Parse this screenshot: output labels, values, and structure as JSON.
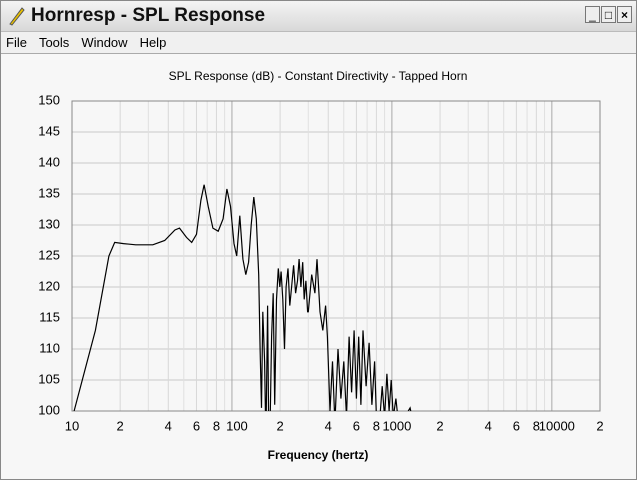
{
  "window": {
    "title": "Hornresp - SPL Response",
    "menu": [
      "File",
      "Tools",
      "Window",
      "Help"
    ]
  },
  "chart_data": {
    "type": "line",
    "title": "SPL Response (dB) - Constant Directivity - Tapped Horn",
    "x_label": "Frequency (hertz)",
    "log_x": true,
    "grid": true,
    "xlim": [
      10,
      20000
    ],
    "ylim": [
      100,
      150
    ],
    "xticks": [
      10,
      {
        "value": 20,
        "label": "2"
      },
      {
        "value": 40,
        "label": "4"
      },
      {
        "value": 60,
        "label": "6"
      },
      {
        "value": 80,
        "label": "8"
      },
      100,
      {
        "value": 200,
        "label": "2"
      },
      {
        "value": 400,
        "label": "4"
      },
      {
        "value": 600,
        "label": "6"
      },
      {
        "value": 800,
        "label": "8"
      },
      1000,
      {
        "value": 2000,
        "label": "2"
      },
      {
        "value": 4000,
        "label": "4"
      },
      {
        "value": 6000,
        "label": "6"
      },
      {
        "value": 8000,
        "label": "8"
      },
      10000,
      {
        "value": 20000,
        "label": "2"
      }
    ],
    "xminor_ticks": [
      30,
      50,
      70,
      90,
      300,
      500,
      700,
      900,
      3000,
      5000,
      7000,
      9000
    ],
    "yticks": [
      100,
      105,
      110,
      115,
      120,
      125,
      130,
      135,
      140,
      145,
      150
    ],
    "series": [
      {
        "name": "SPL",
        "color": "#000000",
        "x": [
          10.3,
          14,
          17,
          18.5,
          21,
          25,
          32,
          38,
          44,
          47,
          52,
          56,
          60,
          64,
          67,
          71,
          76,
          82,
          88,
          93,
          98,
          103,
          107,
          112,
          117,
          122,
          127,
          132,
          137,
          142,
          147,
          150,
          153,
          156,
          160,
          163,
          167,
          170,
          173,
          177,
          181,
          185,
          190,
          195,
          199,
          203,
          208,
          213,
          218,
          224,
          230,
          236,
          243,
          250,
          257,
          263,
          270,
          277,
          283,
          290,
          297,
          300,
          315,
          330,
          340,
          355,
          370,
          385,
          395,
          410,
          425,
          440,
          460,
          480,
          500,
          520,
          540,
          560,
          580,
          600,
          620,
          640,
          660,
          690,
          720,
          750,
          780,
          800,
          830,
          870,
          900,
          930,
          960,
          990,
          1020,
          1060,
          1100,
          1200,
          1300,
          1360
        ],
        "values": [
          100,
          113,
          125,
          127.2,
          127,
          126.8,
          126.8,
          127.5,
          129.2,
          129.5,
          128,
          127.2,
          128.5,
          134,
          136.5,
          133,
          129.5,
          129,
          131,
          135.8,
          133,
          127,
          125,
          131.5,
          124.5,
          122,
          124,
          130,
          134.5,
          131,
          122,
          110,
          100.5,
          116,
          108,
          95,
          117,
          95,
          97,
          112,
          119,
          101,
          118,
          123,
          120,
          122.5,
          118,
          110,
          120,
          123,
          117,
          120,
          123.5,
          119,
          121,
          124.5,
          120,
          124,
          118,
          121,
          116,
          116,
          122,
          119,
          124.5,
          116,
          113,
          117,
          112,
          100,
          108,
          98,
          110,
          102,
          108,
          99,
          112,
          103,
          113,
          102,
          112,
          101,
          113,
          104,
          111,
          101,
          108,
          99,
          97,
          104,
          99,
          106,
          100,
          105,
          99,
          102,
          98,
          99,
          100.5,
          98
        ]
      }
    ]
  }
}
